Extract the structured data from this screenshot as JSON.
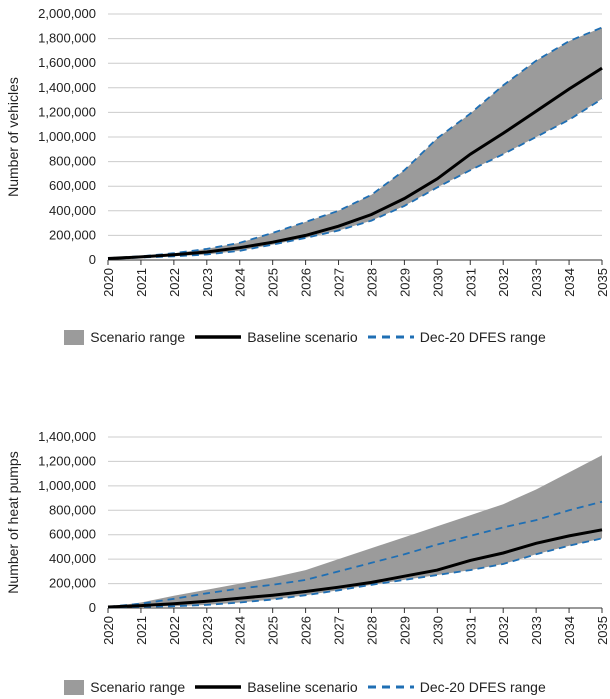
{
  "colors": {
    "range": "#9b9b9b",
    "baseline": "#000000",
    "dfes": "#1f6fb4",
    "grid": "#cccccc"
  },
  "legend_labels": {
    "range": "Scenario range",
    "baseline": "Baseline scenario",
    "dfes": "Dec-20 DFES range"
  },
  "chart_data": [
    {
      "type": "area",
      "title": "",
      "xlabel": "",
      "ylabel": "Number of vehicles",
      "x": [
        2020,
        2021,
        2022,
        2023,
        2024,
        2025,
        2026,
        2027,
        2028,
        2029,
        2030,
        2031,
        2032,
        2033,
        2034,
        2035
      ],
      "x_tick_labels": [
        "2020",
        "2021",
        "2022",
        "2023",
        "2024",
        "2025",
        "2026",
        "2027",
        "2028",
        "2029",
        "2030",
        "2031",
        "2032",
        "2033",
        "2034",
        "2035"
      ],
      "ylim": [
        0,
        2000000
      ],
      "y_ticks": [
        0,
        200000,
        400000,
        600000,
        800000,
        1000000,
        1200000,
        1400000,
        1600000,
        1800000,
        2000000
      ],
      "y_tick_labels": [
        "0",
        "200,000",
        "400,000",
        "600,000",
        "800,000",
        "1,000,000",
        "1,200,000",
        "1,400,000",
        "1,600,000",
        "1,800,000",
        "2,000,000"
      ],
      "grid": true,
      "legend_position": "bottom",
      "range_low": [
        10000,
        20000,
        30000,
        45000,
        75000,
        125000,
        180000,
        240000,
        320000,
        440000,
        590000,
        730000,
        860000,
        1000000,
        1140000,
        1310000
      ],
      "range_high": [
        15000,
        30000,
        55000,
        90000,
        140000,
        220000,
        310000,
        400000,
        530000,
        730000,
        990000,
        1190000,
        1420000,
        1620000,
        1780000,
        1890000
      ],
      "baseline": [
        12000,
        25000,
        42000,
        65000,
        100000,
        145000,
        200000,
        275000,
        370000,
        500000,
        660000,
        860000,
        1030000,
        1210000,
        1390000,
        1560000
      ],
      "dfes_low": [
        10000,
        20000,
        30000,
        45000,
        75000,
        125000,
        180000,
        240000,
        320000,
        440000,
        590000,
        730000,
        860000,
        1000000,
        1140000,
        1310000
      ],
      "dfes_high": [
        15000,
        30000,
        55000,
        90000,
        140000,
        220000,
        310000,
        400000,
        530000,
        730000,
        990000,
        1190000,
        1420000,
        1620000,
        1780000,
        1890000
      ]
    },
    {
      "type": "area",
      "title": "",
      "xlabel": "",
      "ylabel": "Number of heat pumps",
      "x": [
        2020,
        2021,
        2022,
        2023,
        2024,
        2025,
        2026,
        2027,
        2028,
        2029,
        2030,
        2031,
        2032,
        2033,
        2034,
        2035
      ],
      "x_tick_labels": [
        "2020",
        "2021",
        "2022",
        "2023",
        "2024",
        "2025",
        "2026",
        "2027",
        "2028",
        "2029",
        "2030",
        "2031",
        "2032",
        "2033",
        "2034",
        "2035"
      ],
      "ylim": [
        0,
        1400000
      ],
      "y_ticks": [
        0,
        200000,
        400000,
        600000,
        800000,
        1000000,
        1200000,
        1400000
      ],
      "y_tick_labels": [
        "0",
        "200,000",
        "400,000",
        "600,000",
        "800,000",
        "1,000,000",
        "1,200,000",
        "1,400,000"
      ],
      "grid": true,
      "legend_position": "bottom",
      "range_low": [
        5000,
        10000,
        15000,
        25000,
        45000,
        70000,
        105000,
        145000,
        190000,
        230000,
        270000,
        310000,
        360000,
        440000,
        510000,
        570000
      ],
      "range_high": [
        10000,
        45000,
        100000,
        150000,
        200000,
        250000,
        310000,
        400000,
        490000,
        580000,
        670000,
        760000,
        850000,
        970000,
        1110000,
        1250000
      ],
      "baseline": [
        8000,
        20000,
        35000,
        55000,
        80000,
        105000,
        135000,
        170000,
        210000,
        260000,
        310000,
        390000,
        450000,
        530000,
        590000,
        640000
      ],
      "dfes_low": [
        5000,
        10000,
        15000,
        25000,
        45000,
        70000,
        105000,
        145000,
        190000,
        230000,
        270000,
        310000,
        360000,
        440000,
        510000,
        570000
      ],
      "dfes_high": [
        10000,
        35000,
        75000,
        120000,
        160000,
        190000,
        230000,
        300000,
        370000,
        440000,
        520000,
        590000,
        660000,
        720000,
        800000,
        870000
      ]
    }
  ]
}
